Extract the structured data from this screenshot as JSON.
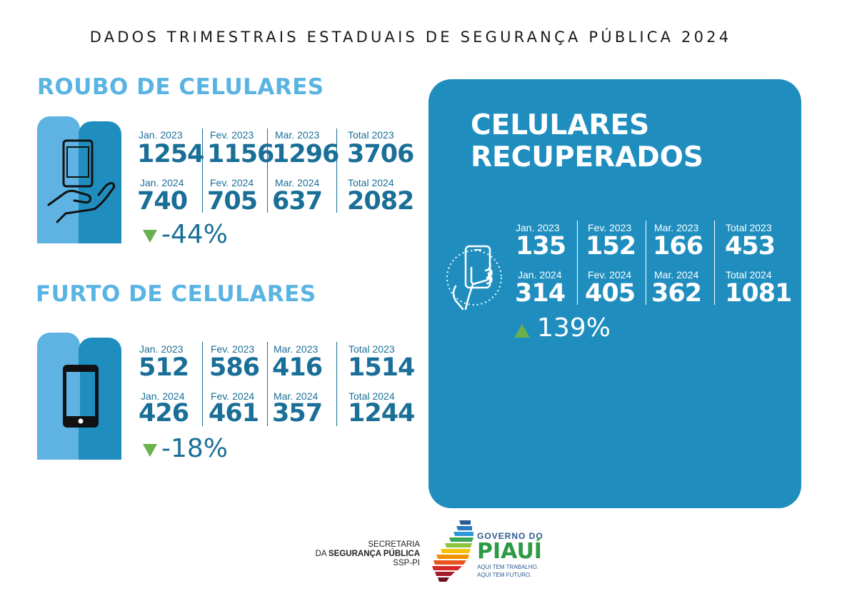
{
  "title": "DADOS TRIMESTRAIS ESTADUAIS DE SEGURANÇA PÚBLICA 2024",
  "colors": {
    "accent_light": "#5ab4e2",
    "accent_dark": "#1f8ebf",
    "text_blue": "#1a6f97",
    "up_down_arrow": "#6ab04c"
  },
  "roubo": {
    "heading": "ROUBO DE CELULARES",
    "icon": "hand-holding-phone-icon",
    "labels_2023": [
      "Jan. 2023",
      "Fev. 2023",
      "Mar. 2023",
      "Total 2023"
    ],
    "values_2023": [
      "1254",
      "1156",
      "1296",
      "3706"
    ],
    "labels_2024": [
      "Jan. 2024",
      "Fev. 2024",
      "Mar. 2024",
      "Total 2024"
    ],
    "values_2024": [
      "740",
      "705",
      "637",
      "2082"
    ],
    "change": "-44%",
    "trend": "down"
  },
  "furto": {
    "heading": "FURTO DE CELULARES",
    "icon": "smartphone-icon",
    "labels_2023": [
      "Jan. 2023",
      "Fev. 2023",
      "Mar. 2023",
      "Total 2023"
    ],
    "values_2023": [
      "512",
      "586",
      "416",
      "1514"
    ],
    "labels_2024": [
      "Jan. 2024",
      "Fev. 2024",
      "Mar. 2024",
      "Total 2024"
    ],
    "values_2024": [
      "426",
      "461",
      "357",
      "1244"
    ],
    "change": "-18%",
    "trend": "down"
  },
  "recuperados": {
    "heading_line1": "CELULARES",
    "heading_line2": "RECUPERADOS",
    "icon": "hand-tapping-phone-icon",
    "labels_2023": [
      "Jan. 2023",
      "Fev. 2023",
      "Mar. 2023",
      "Total 2023"
    ],
    "values_2023": [
      "135",
      "152",
      "166",
      "453"
    ],
    "labels_2024": [
      "Jan. 2024",
      "Fev. 2024",
      "Mar. 2024",
      "Total 2024"
    ],
    "values_2024": [
      "314",
      "405",
      "362",
      "1081"
    ],
    "change": "139%",
    "trend": "up"
  },
  "footer": {
    "ssp_line1": "SECRETARIA",
    "ssp_line2_prefix": "DA ",
    "ssp_line2_bold": "SEGURANÇA PÚBLICA",
    "ssp_line3": "SSP-PI",
    "gov_title": "GOVERNO DO",
    "gov_name": "PIAUÍ",
    "gov_slogan1": "AQUI TEM TRABALHO.",
    "gov_slogan2": "AQUI TEM FUTURO."
  }
}
